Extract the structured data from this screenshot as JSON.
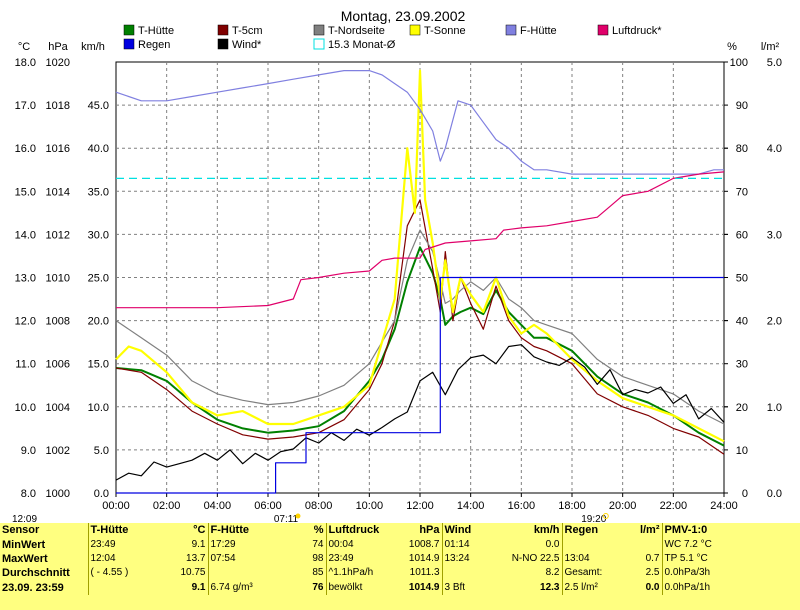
{
  "chart_data": {
    "type": "line",
    "title": "Montag, 23.09.2002",
    "x_ticks": [
      "00:00",
      "02:00",
      "04:00",
      "06:00",
      "08:00",
      "10:00",
      "12:00",
      "14:00",
      "16:00",
      "18:00",
      "20:00",
      "22:00",
      "24:00"
    ],
    "axes": {
      "temp": {
        "label": "°C",
        "ticks": [
          "8.0",
          "9.0",
          "10.0",
          "11.0",
          "12.0",
          "13.0",
          "14.0",
          "15.0",
          "16.0",
          "17.0",
          "18.0"
        ],
        "ylim": [
          8,
          18
        ]
      },
      "pressure": {
        "label": "hPa",
        "ticks": [
          "1000",
          "1002",
          "1004",
          "1006",
          "1008",
          "1010",
          "1012",
          "1014",
          "1016",
          "1018",
          "1020"
        ],
        "ylim": [
          1000,
          1020
        ]
      },
      "wind": {
        "label": "km/h",
        "ticks": [
          "0.0",
          "5.0",
          "10.0",
          "15.0",
          "20.0",
          "25.0",
          "30.0",
          "35.0",
          "40.0",
          "45.0"
        ],
        "ylim": [
          0,
          50
        ]
      },
      "humidity": {
        "label": "%",
        "ticks": [
          "0",
          "10",
          "20",
          "30",
          "40",
          "50",
          "60",
          "70",
          "80",
          "90",
          "100"
        ],
        "ylim": [
          0,
          100
        ]
      },
      "rain": {
        "label": "l/m²",
        "ticks": [
          "0.0",
          "1.0",
          "2.0",
          "3.0",
          "4.0",
          "5.0"
        ],
        "ylim": [
          0,
          5
        ]
      }
    },
    "grid": true,
    "legend_position": "top",
    "legend": [
      {
        "name": "T-Hütte",
        "color": "#008000"
      },
      {
        "name": "T-5cm",
        "color": "#800000"
      },
      {
        "name": "T-Nordseite",
        "color": "#808080"
      },
      {
        "name": "T-Sonne",
        "color": "#ffff00"
      },
      {
        "name": "F-Hütte",
        "color": "#8080e0"
      },
      {
        "name": "Luftdruck*",
        "color": "#e0006a"
      },
      {
        "name": "Regen",
        "color": "#0000e0"
      },
      {
        "name": "Wind*",
        "color": "#000000"
      },
      {
        "name": "15.3 Monat-Ø",
        "color": "#00e0e0"
      }
    ],
    "annotations": {
      "sunrise": "07:11",
      "sunset": "19:20",
      "corner_time": "12:09"
    },
    "series": [
      {
        "name": "T-Hütte",
        "axis": "temp",
        "color": "#008000",
        "x": [
          0,
          1,
          2,
          3,
          4,
          5,
          6,
          7,
          8,
          9,
          10,
          10.5,
          11,
          11.5,
          12,
          12.5,
          12.8,
          13,
          13.3,
          13.6,
          14,
          14.5,
          15,
          15.5,
          16,
          16.5,
          17,
          18,
          19,
          20,
          21,
          22,
          23,
          24
        ],
        "y": [
          10.9,
          10.85,
          10.6,
          10.1,
          9.7,
          9.5,
          9.4,
          9.45,
          9.55,
          9.9,
          10.6,
          11.1,
          11.8,
          12.9,
          13.7,
          13.1,
          12.5,
          11.9,
          12.1,
          12.2,
          12.3,
          12.15,
          12.7,
          12.2,
          11.9,
          11.6,
          11.6,
          11.3,
          10.7,
          10.3,
          10.1,
          9.8,
          9.4,
          9.1
        ]
      },
      {
        "name": "T-5cm",
        "axis": "temp",
        "color": "#800000",
        "x": [
          0,
          1,
          2,
          3,
          4,
          5,
          6,
          7,
          8,
          9,
          10,
          10.5,
          11,
          11.5,
          12,
          12.5,
          12.8,
          13,
          13.3,
          13.6,
          14,
          14.5,
          15,
          15.5,
          16,
          16.5,
          17,
          18,
          19,
          20,
          21,
          22,
          23,
          24
        ],
        "y": [
          10.9,
          10.8,
          10.4,
          9.9,
          9.6,
          9.35,
          9.25,
          9.3,
          9.4,
          9.7,
          10.4,
          11.0,
          12.0,
          14.2,
          14.8,
          13.2,
          12.2,
          13.6,
          12.0,
          13.0,
          12.4,
          11.8,
          12.8,
          12.0,
          11.6,
          11.4,
          11.3,
          11.0,
          10.3,
          10.0,
          9.8,
          9.5,
          9.3,
          8.9
        ]
      },
      {
        "name": "T-Nordseite",
        "axis": "temp",
        "color": "#808080",
        "x": [
          0,
          1,
          2,
          3,
          4,
          5,
          6,
          7,
          8,
          9,
          10,
          10.5,
          11,
          11.5,
          12,
          12.5,
          12.8,
          13,
          13.3,
          13.6,
          14,
          14.5,
          15,
          15.5,
          16,
          16.5,
          17,
          18,
          19,
          20,
          21,
          22,
          23,
          24
        ],
        "y": [
          12.0,
          11.6,
          11.2,
          10.6,
          10.3,
          10.15,
          10.05,
          10.1,
          10.25,
          10.5,
          11.0,
          11.5,
          12.0,
          13.4,
          14.1,
          13.6,
          12.9,
          12.4,
          12.5,
          12.7,
          12.9,
          12.7,
          13.0,
          12.5,
          12.3,
          12.0,
          11.9,
          11.7,
          11.1,
          10.7,
          10.5,
          10.3,
          9.9,
          9.6
        ]
      },
      {
        "name": "T-Sonne",
        "axis": "temp",
        "color": "#ffff00",
        "x": [
          0,
          0.5,
          1,
          2,
          3,
          4,
          5,
          6,
          7,
          8,
          9,
          10,
          10.5,
          11,
          11.5,
          11.8,
          12,
          12.2,
          12.5,
          12.8,
          13,
          13.3,
          13.6,
          14,
          14.5,
          15,
          15.5,
          16,
          16.5,
          17,
          18,
          19,
          20,
          21,
          22,
          23,
          24
        ],
        "y": [
          11.1,
          11.4,
          11.3,
          10.8,
          10.1,
          9.8,
          9.9,
          9.6,
          9.6,
          9.8,
          10.0,
          10.5,
          11.5,
          12.5,
          16.0,
          14.5,
          17.8,
          14.8,
          13.8,
          12.5,
          13.4,
          12.2,
          13.0,
          12.6,
          12.2,
          13.0,
          12.1,
          11.7,
          11.9,
          11.7,
          11.1,
          10.6,
          10.2,
          10.0,
          9.8,
          9.5,
          9.2
        ]
      },
      {
        "name": "F-Hütte",
        "axis": "humidity",
        "color": "#8080e0",
        "x": [
          0,
          1,
          2,
          3,
          4,
          5,
          6,
          7,
          8,
          9,
          10,
          10.5,
          11,
          11.5,
          12,
          12.5,
          12.8,
          13,
          13.5,
          14,
          14.5,
          15,
          15.5,
          16,
          16.5,
          17,
          18,
          19,
          20,
          21,
          22,
          23,
          23.6,
          24
        ],
        "y": [
          93,
          91,
          91,
          92,
          93,
          94,
          95,
          96,
          97,
          98,
          98,
          97,
          95,
          93,
          89,
          84,
          77,
          80,
          91,
          90,
          86,
          82,
          80,
          77,
          75,
          75,
          74,
          74,
          74,
          74,
          74,
          74,
          75,
          75
        ]
      },
      {
        "name": "Luftdruck*",
        "axis": "pressure",
        "color": "#e0006a",
        "x": [
          0,
          2,
          4,
          6,
          7,
          7.3,
          8,
          9,
          10,
          10.5,
          11,
          12,
          12.2,
          13,
          14,
          15,
          15.3,
          16,
          17,
          18,
          19,
          19.5,
          20,
          21,
          22,
          23,
          24
        ],
        "y": [
          1008.6,
          1008.6,
          1008.6,
          1008.7,
          1009.0,
          1009.9,
          1010.0,
          1010.2,
          1010.3,
          1010.8,
          1010.9,
          1010.9,
          1011.3,
          1011.6,
          1011.7,
          1011.8,
          1012.2,
          1012.3,
          1012.4,
          1012.6,
          1012.8,
          1013.3,
          1013.8,
          1014.0,
          1014.6,
          1014.8,
          1014.9
        ]
      },
      {
        "name": "Wind*",
        "axis": "wind",
        "color": "#000000",
        "x": [
          0,
          0.5,
          1,
          1.5,
          2,
          2.5,
          3,
          3.5,
          4,
          4.5,
          5,
          5.5,
          6,
          6.5,
          7,
          7.5,
          8,
          8.5,
          9,
          9.5,
          10,
          10.5,
          11,
          11.5,
          12,
          12.5,
          13,
          13.5,
          14,
          14.5,
          15,
          15.5,
          16,
          16.5,
          17,
          17.5,
          18,
          18.5,
          19,
          19.5,
          20,
          20.5,
          21,
          21.5,
          22,
          22.5,
          23,
          23.5,
          24
        ],
        "y": [
          1.5,
          2.3,
          2.0,
          3.6,
          3.0,
          3.4,
          3.8,
          4.6,
          3.8,
          5.0,
          3.4,
          4.6,
          3.8,
          4.8,
          5.1,
          6.4,
          5.8,
          7.0,
          6.1,
          7.4,
          6.7,
          7.6,
          8.6,
          9.4,
          13.0,
          14.0,
          11.4,
          14.3,
          15.7,
          16.0,
          15.0,
          17.0,
          17.2,
          15.8,
          15.2,
          14.8,
          15.7,
          14.6,
          12.6,
          14.3,
          11.4,
          12.0,
          11.6,
          12.3,
          10.4,
          11.4,
          8.6,
          9.8,
          8.2
        ]
      },
      {
        "name": "Regen",
        "axis": "rain",
        "color": "#0000e0",
        "x": [
          0,
          6.3,
          6.3,
          7.5,
          7.5,
          12.8,
          12.8,
          13.05,
          13.05,
          24
        ],
        "y": [
          0,
          0,
          0.35,
          0.35,
          0.7,
          0.7,
          2.5,
          2.5,
          2.5,
          2.5
        ]
      },
      {
        "name": "15.3 Monat-Ø",
        "axis": "temp",
        "color": "#00e0e0",
        "x": [
          0,
          24
        ],
        "y": [
          15.3,
          15.3
        ]
      }
    ]
  },
  "stats": {
    "header": [
      "Sensor",
      "T-Hütte",
      "°C",
      "F-Hütte",
      "%",
      "Luftdruck",
      "hPa",
      "Wind",
      "km/h",
      "Regen",
      "l/m²",
      "PMV-1:0"
    ],
    "rows": [
      [
        "MinWert",
        "23:49",
        "9.1",
        "17:29",
        "74",
        "00:04",
        "1008.7",
        "01:14",
        "0.0",
        "",
        "",
        "WC 7.2 °C"
      ],
      [
        "MaxWert",
        "12:04",
        "13.7",
        "07:54",
        "98",
        "23:49",
        "1014.9",
        "13:24",
        "N-NO 22.5",
        "13:04",
        "0.7",
        "TP 5.1 °C"
      ],
      [
        "Durchschnitt",
        "( - 4.55 )",
        "10.75",
        "",
        "85",
        "^1.1hPa/h",
        "1011.3",
        "",
        "8.2",
        "Gesamt:",
        "2.5",
        "0.0hPa/3h"
      ],
      [
        "23.09.  23:59",
        "",
        "9.1",
        "6.74 g/m³",
        "76",
        "bewölkt",
        "1014.9",
        "3 Bft",
        "12.3",
        "2.5 l/m²",
        "0.0",
        "0.0hPa/1h"
      ]
    ]
  }
}
